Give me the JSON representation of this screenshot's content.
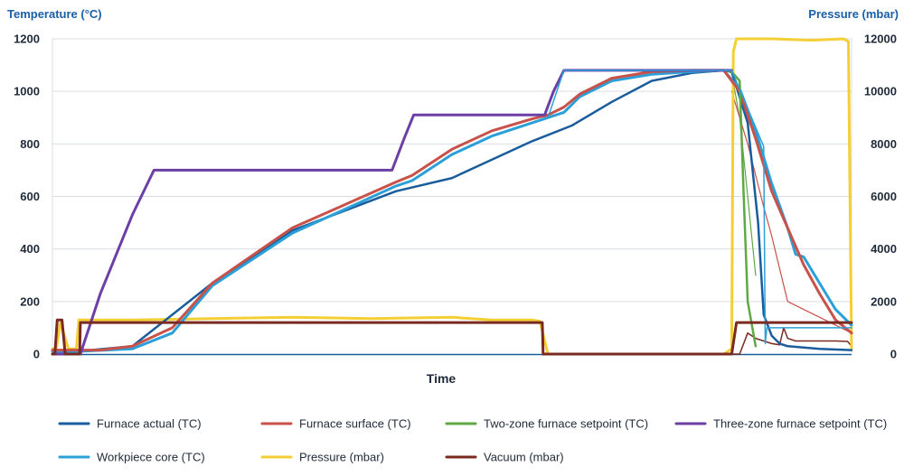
{
  "chart_data": {
    "type": "line",
    "xlabel": "Time",
    "ylabel": "Temperature (°C)",
    "y2label": "Pressure (mbar)",
    "ylim": [
      0,
      1200
    ],
    "y2lim": [
      0,
      12000
    ],
    "yticks": [
      0,
      200,
      400,
      600,
      800,
      1000,
      1200
    ],
    "y2ticks": [
      0,
      2000,
      4000,
      6000,
      8000,
      10000,
      12000
    ],
    "xlim": [
      0,
      100
    ],
    "grid": true,
    "legend_position": "bottom",
    "series": [
      {
        "name": "Furnace actual (TC)",
        "axis": "left",
        "color": "#1b5d9c",
        "width": 2.5,
        "x": [
          0,
          3,
          10,
          20,
          30,
          43,
          50,
          60,
          65,
          70,
          75,
          80,
          84,
          85,
          87,
          88.3,
          89,
          90,
          91,
          92,
          94,
          96,
          100
        ],
        "y": [
          10,
          10,
          30,
          270,
          470,
          620,
          670,
          810,
          870,
          960,
          1040,
          1070,
          1080,
          1075,
          880,
          500,
          150,
          70,
          40,
          30,
          25,
          20,
          15
        ]
      },
      {
        "name": "Furnace surface (TC)",
        "axis": "left",
        "color": "#c8524a",
        "width": 3,
        "x": [
          0,
          3,
          6,
          10,
          15,
          20,
          30,
          43,
          45,
          50,
          55,
          60,
          62,
          64,
          66,
          70,
          75,
          80,
          84,
          86,
          88,
          90,
          92,
          94,
          96,
          98,
          100
        ],
        "y": [
          15,
          15,
          15,
          30,
          100,
          270,
          480,
          655,
          680,
          780,
          850,
          895,
          910,
          940,
          990,
          1050,
          1075,
          1080,
          1080,
          1000,
          820,
          620,
          480,
          340,
          230,
          130,
          80
        ]
      },
      {
        "name": "Two-zone furnace setpoint (TC)",
        "axis": "left",
        "color": "#5fa843",
        "width": 2.5,
        "x": [
          84,
          85,
          86,
          86.5,
          87,
          88
        ],
        "y": [
          1080,
          1075,
          1040,
          600,
          200,
          30
        ]
      },
      {
        "name": "Three-zone furnace setpoint (TC)",
        "axis": "left",
        "color": "#6b3fa6",
        "width": 3,
        "x": [
          0,
          3.5,
          6,
          10,
          12.7,
          42.5,
          44,
          45.2,
          61.6,
          62.7,
          64,
          85
        ],
        "y": [
          0,
          0,
          230,
          530,
          700,
          700,
          820,
          910,
          910,
          1000,
          1080,
          1080
        ]
      },
      {
        "name": "Workpiece core (TC)",
        "axis": "left",
        "color": "#2ba0d8",
        "width": 3,
        "x": [
          0,
          3,
          10,
          15,
          20,
          30,
          43,
          45,
          50,
          55,
          60,
          64,
          66,
          70,
          75,
          80,
          84,
          86,
          88,
          90,
          92,
          93,
          94,
          96,
          98,
          100
        ],
        "y": [
          10,
          10,
          20,
          80,
          260,
          460,
          640,
          660,
          760,
          830,
          880,
          920,
          980,
          1040,
          1065,
          1075,
          1080,
          1010,
          850,
          650,
          480,
          380,
          370,
          270,
          170,
          110
        ]
      },
      {
        "name": "Pressure (mbar)",
        "axis": "right",
        "color": "#f4cf34",
        "width": 3,
        "x": [
          0,
          0.5,
          1,
          2,
          3,
          3.3,
          3.6,
          10,
          20,
          30,
          40,
          50,
          55,
          60,
          61,
          62,
          70,
          80,
          84,
          85,
          85.2,
          85.6,
          90,
          95,
          99,
          99.6,
          100
        ],
        "y": [
          200,
          200,
          1200,
          200,
          200,
          1300,
          1300,
          1300,
          1350,
          1400,
          1350,
          1400,
          1300,
          1300,
          1250,
          0,
          0,
          0,
          0,
          200,
          11500,
          12000,
          12000,
          11950,
          12000,
          11900,
          200
        ]
      },
      {
        "name": "Vacuum (mbar)",
        "axis": "right",
        "color": "#7a2a20",
        "width": 3,
        "x": [
          0,
          0.3,
          0.6,
          1.2,
          1.6,
          2,
          3,
          3.4,
          3.5,
          10,
          20,
          30,
          40,
          50,
          60,
          61.3,
          61.4,
          70,
          80,
          85,
          85.6,
          85.8,
          100
        ],
        "y": [
          0,
          0,
          1300,
          1300,
          0,
          0,
          0,
          0,
          1200,
          1200,
          1200,
          1200,
          1200,
          1200,
          1200,
          1200,
          0,
          0,
          0,
          0,
          1200,
          1200,
          1200
        ]
      },
      {
        "name": "",
        "axis": "left",
        "color": "#2ba0d8",
        "width": 1.5,
        "x": [
          62,
          64,
          85,
          89,
          89.2,
          89.4,
          100
        ],
        "y": [
          900,
          1080,
          1080,
          790,
          40,
          100,
          100
        ]
      },
      {
        "name": "",
        "axis": "left",
        "color": "#c8524a",
        "width": 1.2,
        "x": [
          85,
          87,
          89,
          90,
          92,
          100
        ],
        "y": [
          1000,
          800,
          560,
          450,
          200,
          80
        ]
      },
      {
        "name": "",
        "axis": "left",
        "color": "#5fa843",
        "width": 1.2,
        "x": [
          84,
          85,
          86,
          87,
          88
        ],
        "y": [
          1080,
          1070,
          900,
          600,
          300
        ]
      },
      {
        "name": "",
        "axis": "right",
        "color": "#7a2a20",
        "width": 1.5,
        "x": [
          85,
          86,
          87,
          88,
          90,
          91,
          91.5,
          92,
          93,
          95,
          98,
          99.5,
          100
        ],
        "y": [
          0,
          0,
          800,
          600,
          400,
          350,
          1000,
          600,
          500,
          500,
          500,
          480,
          300
        ]
      }
    ],
    "legend": [
      {
        "label": "Furnace actual (TC)",
        "color": "#1b5d9c"
      },
      {
        "label": "Furnace surface (TC)",
        "color": "#c8524a"
      },
      {
        "label": "Two-zone furnace setpoint (TC)",
        "color": "#5fa843"
      },
      {
        "label": "Three-zone furnace setpoint (TC)",
        "color": "#6b3fa6"
      },
      {
        "label": "Workpiece core (TC)",
        "color": "#2ba0d8"
      },
      {
        "label": "Pressure (mbar)",
        "color": "#f4cf34"
      },
      {
        "label": "Vacuum (mbar)",
        "color": "#7a2a20"
      }
    ]
  }
}
